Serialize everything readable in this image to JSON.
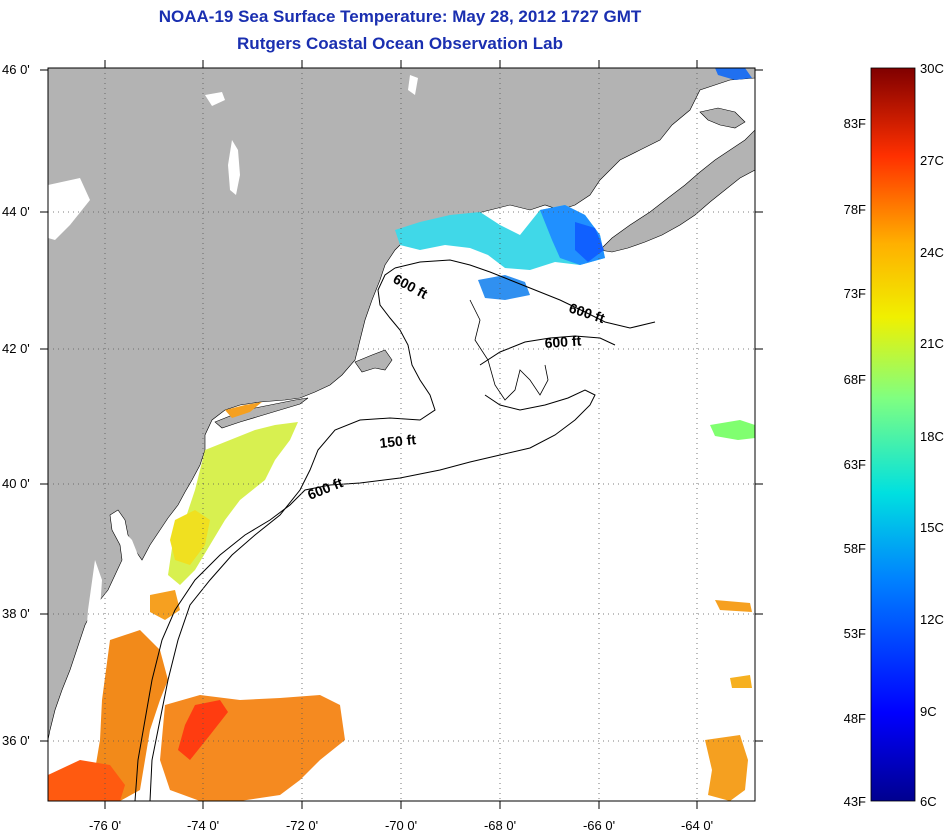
{
  "title": "NOAA-19 Sea Surface Temperature:  May 28, 2012 1727 GMT",
  "subtitle": "Rutgers Coastal Ocean Observation Lab",
  "lat_labels": [
    "46 0'",
    "44 0'",
    "42 0'",
    "40 0'",
    "38 0'",
    "36 0'"
  ],
  "lon_labels": [
    "-76 0'",
    "-74 0'",
    "-72 0'",
    "-70 0'",
    "-68 0'",
    "-66 0'",
    "-64 0'"
  ],
  "isobaths": [
    "600 ft",
    "600 ft",
    "600 ft",
    "150 ft",
    "600 ft"
  ],
  "colorbar": {
    "fahrenheit": [
      "83F",
      "78F",
      "73F",
      "68F",
      "63F",
      "58F",
      "53F",
      "48F",
      "43F"
    ],
    "celsius": [
      "30C",
      "27C",
      "24C",
      "21C",
      "18C",
      "15C",
      "12C",
      "9C",
      "6C"
    ]
  },
  "colors": {
    "land": "#b3b3b3",
    "ocean_no_data": "#ffffff",
    "title": "#1a2fb0"
  }
}
